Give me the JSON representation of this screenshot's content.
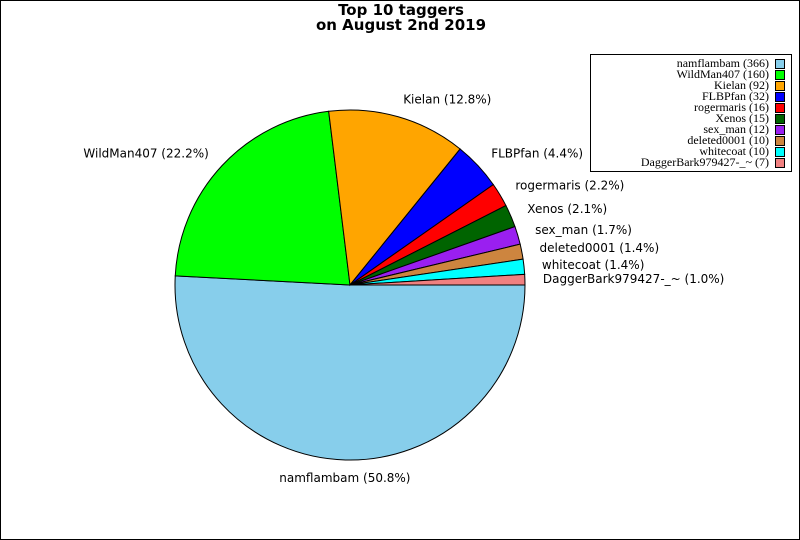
{
  "chart_data": {
    "type": "pie",
    "title": "Top 10 taggers",
    "subtitle": "on August 2nd 2019",
    "slices": [
      {
        "name": "namflambam",
        "value": 366,
        "percent_label": "namflambam (50.8%)",
        "legend_label": "namflambam (366)",
        "color": "#87ceeb"
      },
      {
        "name": "WildMan407",
        "value": 160,
        "percent_label": "WildMan407 (22.2%)",
        "legend_label": "WildMan407 (160)",
        "color": "#00ff00"
      },
      {
        "name": "Kielan",
        "value": 92,
        "percent_label": "Kielan (12.8%)",
        "legend_label": "Kielan (92)",
        "color": "#ffa500"
      },
      {
        "name": "FLBPfan",
        "value": 32,
        "percent_label": "FLBPfan (4.4%)",
        "legend_label": "FLBPfan (32)",
        "color": "#0000ff"
      },
      {
        "name": "rogermaris",
        "value": 16,
        "percent_label": "rogermaris (2.2%)",
        "legend_label": "rogermaris (16)",
        "color": "#ff0000"
      },
      {
        "name": "Xenos",
        "value": 15,
        "percent_label": "Xenos (2.1%)",
        "legend_label": "Xenos (15)",
        "color": "#006400"
      },
      {
        "name": "sex_man",
        "value": 12,
        "percent_label": "sex_man (1.7%)",
        "legend_label": "sex_man (12)",
        "color": "#9a1ff0"
      },
      {
        "name": "deleted0001",
        "value": 10,
        "percent_label": "deleted0001 (1.4%)",
        "legend_label": "deleted0001 (10)",
        "color": "#cd853f"
      },
      {
        "name": "whitecoat",
        "value": 10,
        "percent_label": "whitecoat (1.4%)",
        "legend_label": "whitecoat (10)",
        "color": "#00ffff"
      },
      {
        "name": "DaggerBark979427-_~",
        "value": 7,
        "percent_label": "DaggerBark979427-_~ (1.0%)",
        "legend_label": "DaggerBark979427-_~ (7)",
        "color": "#f08080"
      }
    ],
    "start_angle": "3 o'clock",
    "direction": "clockwise",
    "legend_position": "top-right",
    "grid": false
  }
}
